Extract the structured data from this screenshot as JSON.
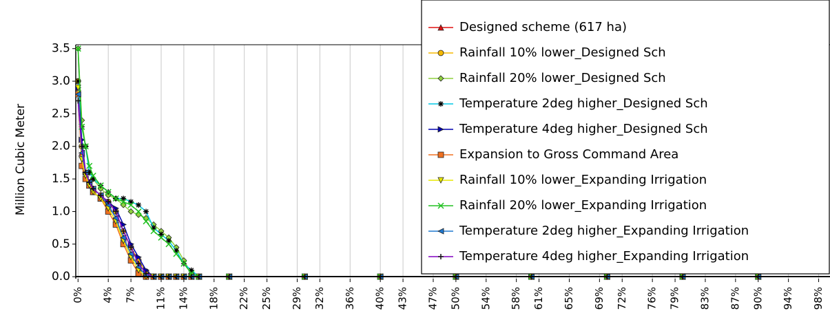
{
  "chart_data": {
    "type": "line",
    "y_label": "Million Cubic Meter",
    "x": [
      0,
      0.5,
      1,
      1.5,
      2,
      3,
      4,
      5,
      6,
      7,
      8,
      9,
      10,
      11,
      12,
      13,
      14,
      15,
      16,
      20,
      30,
      40,
      50,
      60,
      70,
      80,
      90,
      100
    ],
    "xlim": [
      -0.3,
      99.5
    ],
    "ylim": [
      -0.03,
      3.56
    ],
    "xticks": [
      {
        "value": 0,
        "label": "0%"
      },
      {
        "value": 4,
        "label": "4%"
      },
      {
        "value": 7,
        "label": "7%"
      },
      {
        "value": 11,
        "label": "11%"
      },
      {
        "value": 14,
        "label": "14%"
      },
      {
        "value": 18,
        "label": "18%"
      },
      {
        "value": 22,
        "label": "22%"
      },
      {
        "value": 25,
        "label": "25%"
      },
      {
        "value": 29,
        "label": "29%"
      },
      {
        "value": 32,
        "label": "32%"
      },
      {
        "value": 36,
        "label": "36%"
      },
      {
        "value": 40,
        "label": "40%"
      },
      {
        "value": 43,
        "label": "43%"
      },
      {
        "value": 47,
        "label": "47%"
      },
      {
        "value": 50,
        "label": "50%"
      },
      {
        "value": 54,
        "label": "54%"
      },
      {
        "value": 58,
        "label": "58%"
      },
      {
        "value": 61,
        "label": "61%"
      },
      {
        "value": 65,
        "label": "65%"
      },
      {
        "value": 69,
        "label": "69%"
      },
      {
        "value": 72,
        "label": "72%"
      },
      {
        "value": 76,
        "label": "76%"
      },
      {
        "value": 79,
        "label": "79%"
      },
      {
        "value": 83,
        "label": "83%"
      },
      {
        "value": 87,
        "label": "87%"
      },
      {
        "value": 90,
        "label": "90%"
      },
      {
        "value": 94,
        "label": "94%"
      },
      {
        "value": 98,
        "label": "98%"
      }
    ],
    "yticks": [
      {
        "value": 0,
        "label": "0.0"
      },
      {
        "value": 0.5,
        "label": "0.5"
      },
      {
        "value": 1,
        "label": "1.0"
      },
      {
        "value": 1.5,
        "label": "1.5"
      },
      {
        "value": 2,
        "label": "2.0"
      },
      {
        "value": 2.5,
        "label": "2.5"
      },
      {
        "value": 3,
        "label": "3.0"
      },
      {
        "value": 3.5,
        "label": "3.5"
      }
    ],
    "grid": "x",
    "legend": "upper right",
    "series": [
      {
        "name": "Designed scheme (617 ha)",
        "color": "#e01010",
        "marker": "triangle",
        "values": [
          2.9,
          1.9,
          1.5,
          1.4,
          1.3,
          1.2,
          1.1,
          0.9,
          0.6,
          0.35,
          0.15,
          0.02,
          0,
          0,
          0,
          0,
          0,
          0,
          0,
          0,
          0,
          0,
          0,
          0,
          0,
          0,
          0,
          0
        ]
      },
      {
        "name": "Rainfall 10% lower_Designed Sch",
        "color": "#f5b800",
        "marker": "circle",
        "values": [
          3.0,
          2.0,
          1.6,
          1.45,
          1.35,
          1.25,
          1.15,
          1.0,
          0.7,
          0.45,
          0.25,
          0.08,
          0,
          0,
          0,
          0,
          0,
          0,
          0,
          0,
          0,
          0,
          0,
          0,
          0,
          0,
          0,
          0
        ]
      },
      {
        "name": "Rainfall 20% lower_Designed Sch",
        "color": "#8fd13f",
        "marker": "diamond",
        "values": [
          3.5,
          2.4,
          2.0,
          1.6,
          1.5,
          1.35,
          1.25,
          1.2,
          1.1,
          1.0,
          0.95,
          0.9,
          0.8,
          0.7,
          0.6,
          0.45,
          0.25,
          0.05,
          0,
          0,
          0,
          0,
          0,
          0,
          0,
          0,
          0,
          0
        ]
      },
      {
        "name": "Temperature 2deg higher_Designed Sch",
        "color": "#00c8e6",
        "marker": "asterisk",
        "values": [
          3.0,
          2.3,
          2.0,
          1.6,
          1.5,
          1.4,
          1.3,
          1.2,
          1.2,
          1.15,
          1.1,
          1.0,
          0.75,
          0.65,
          0.55,
          0.4,
          0.2,
          0.1,
          0,
          0,
          0,
          0,
          0,
          0,
          0,
          0,
          0,
          0
        ]
      },
      {
        "name": "Temperature 4deg higher_Designed Sch",
        "color": "#0000b0",
        "marker": "right-triangle",
        "values": [
          2.9,
          2.1,
          1.6,
          1.4,
          1.3,
          1.2,
          1.15,
          1.05,
          0.8,
          0.5,
          0.3,
          0.1,
          0,
          0,
          0,
          0,
          0,
          0,
          0,
          0,
          0,
          0,
          0,
          0,
          0,
          0,
          0,
          0
        ]
      },
      {
        "name": "Expansion to Gross Command Area",
        "color": "#f07020",
        "marker": "square",
        "values": [
          2.8,
          1.7,
          1.5,
          1.4,
          1.3,
          1.2,
          1.0,
          0.8,
          0.5,
          0.25,
          0.05,
          0,
          0,
          0,
          0,
          0,
          0,
          0,
          0,
          0,
          0,
          0,
          0,
          0,
          0,
          0,
          0,
          0
        ]
      },
      {
        "name": "Rainfall 10% lower_Expanding Irrigation",
        "color": "#e8e800",
        "marker": "down-triangle",
        "values": [
          2.9,
          1.8,
          1.55,
          1.4,
          1.3,
          1.2,
          1.05,
          0.85,
          0.55,
          0.3,
          0.1,
          0,
          0,
          0,
          0,
          0,
          0,
          0,
          0,
          0,
          0,
          0,
          0,
          0,
          0,
          0,
          0,
          0
        ]
      },
      {
        "name": "Rainfall 20% lower_Expanding Irrigation",
        "color": "#20c020",
        "marker": "x",
        "values": [
          3.5,
          2.3,
          2.0,
          1.7,
          1.55,
          1.4,
          1.3,
          1.2,
          1.15,
          1.1,
          1.0,
          0.85,
          0.7,
          0.6,
          0.5,
          0.35,
          0.2,
          0.05,
          0,
          0,
          0,
          0,
          0,
          0,
          0,
          0,
          0,
          0
        ]
      },
      {
        "name": "Temperature 2deg higher_Expanding Irrigation",
        "color": "#1e78d0",
        "marker": "left-triangle",
        "values": [
          2.8,
          1.9,
          1.6,
          1.45,
          1.35,
          1.25,
          1.1,
          0.9,
          0.6,
          0.35,
          0.15,
          0.02,
          0,
          0,
          0,
          0,
          0,
          0,
          0,
          0,
          0,
          0,
          0,
          0,
          0,
          0,
          0,
          0
        ]
      },
      {
        "name": "Temperature 4deg higher_Expanding Irrigation",
        "color": "#8000c0",
        "marker": "plus",
        "values": [
          2.7,
          2.0,
          1.6,
          1.45,
          1.35,
          1.25,
          1.15,
          1.0,
          0.7,
          0.45,
          0.2,
          0.05,
          0,
          0,
          0,
          0,
          0,
          0,
          0,
          0,
          0,
          0,
          0,
          0,
          0,
          0,
          0,
          0
        ]
      }
    ]
  }
}
